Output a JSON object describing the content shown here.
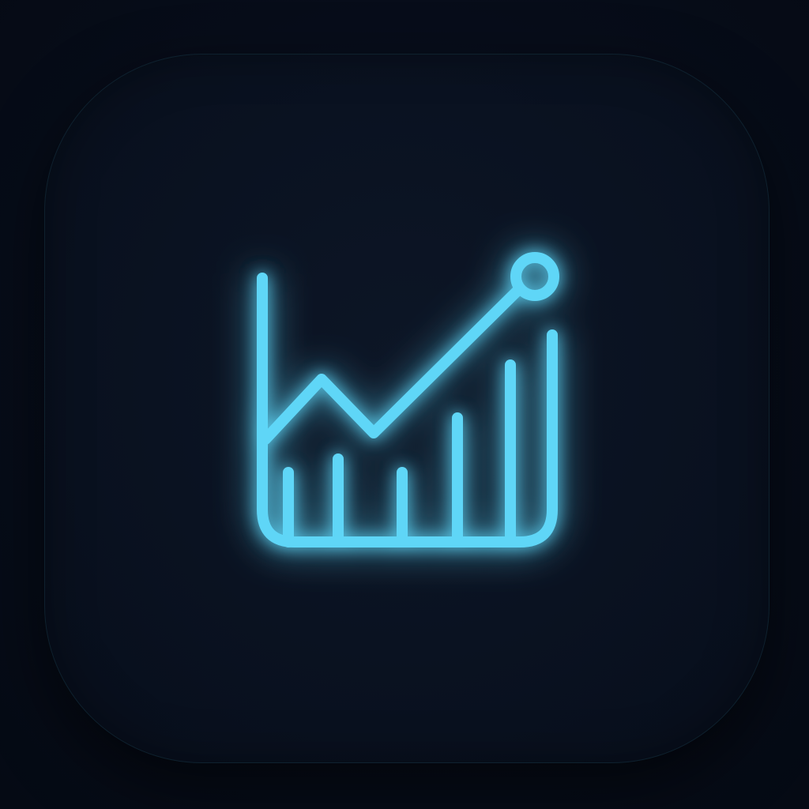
{
  "icon": {
    "name": "chart-growth-icon",
    "color": "#5fd6f7",
    "glow_color": "#1e90ff",
    "background_color": "#060b17",
    "tile_color": "#0b1323"
  }
}
